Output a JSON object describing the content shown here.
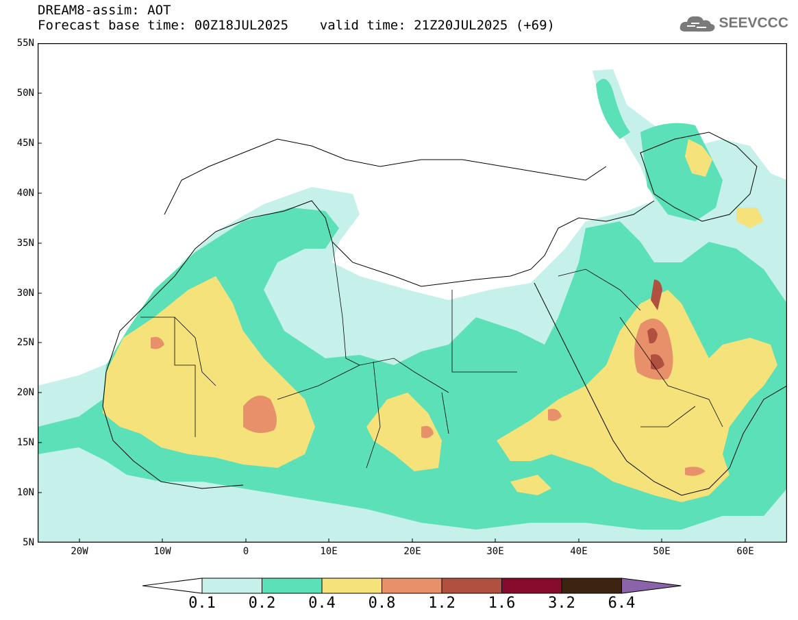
{
  "title": {
    "line1": "DREAM8-assim: AOT",
    "line2": "Forecast base time: 00Z18JUL2025    valid time: 21Z20JUL2025 (+69)"
  },
  "logo": {
    "text": "SEEVCCC",
    "icon": "cloud-icon"
  },
  "map": {
    "lon_range": [
      -25,
      65
    ],
    "lat_range": [
      5,
      55
    ],
    "lat_ticks": [
      "55N",
      "50N",
      "45N",
      "40N",
      "35N",
      "30N",
      "25N",
      "20N",
      "15N",
      "10N",
      "5N"
    ],
    "lon_ticks": [
      "20W",
      "10W",
      "0",
      "10E",
      "20E",
      "30E",
      "40E",
      "50E",
      "60E"
    ]
  },
  "colorbar": {
    "levels": [
      "0.1",
      "0.2",
      "0.4",
      "0.8",
      "1.2",
      "1.6",
      "3.2",
      "6.4"
    ],
    "colors": [
      "#ffffff",
      "#c6f0ea",
      "#5ce0b7",
      "#f5e27a",
      "#e8906a",
      "#b25040",
      "#860a2a",
      "#3b2510",
      "#8a63a8"
    ]
  }
}
